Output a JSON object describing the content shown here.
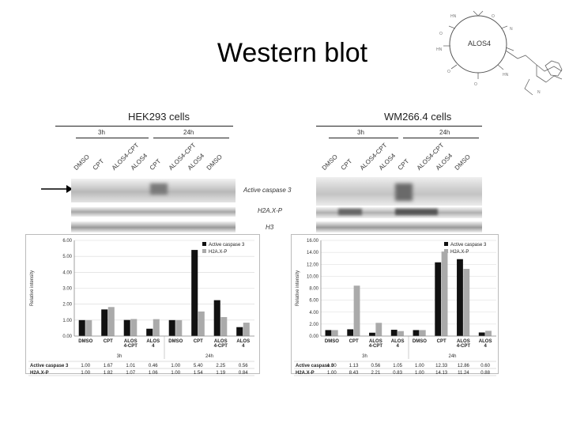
{
  "slide": {
    "title": "Western blot"
  },
  "structure": {
    "label": "ALOS4",
    "icon": "chemical-structure-icon"
  },
  "left_panel": {
    "cells": "HEK293 cells",
    "time_groups": [
      "3h",
      "24h"
    ],
    "lanes": [
      "DMSO",
      "CPT",
      "ALOS4-CPT",
      "ALOS4",
      "CPT",
      "ALOS4-CPT",
      "ALOS4",
      "DMSO"
    ],
    "blot_labels": [
      "Active caspase 3",
      "H2A.X-P",
      "H3"
    ]
  },
  "right_panel": {
    "cells": "WM266.4 cells",
    "time_groups": [
      "3h",
      "24h"
    ],
    "lanes": [
      "DMSO",
      "CPT",
      "ALOS4-CPT",
      "ALOS4",
      "CPT",
      "ALOS4-CPT",
      "ALOS4",
      "DMSO"
    ]
  },
  "colors": {
    "active_caspase": "#111111",
    "h2ax": "#aaaaaa",
    "arrow": "#000000"
  },
  "chart_data": [
    {
      "type": "bar",
      "ylabel": "Relative intensity",
      "ylim": [
        0,
        6
      ],
      "yticks": [
        "0.00",
        "1.00",
        "2.00",
        "3.00",
        "4.00",
        "5.00",
        "6.00"
      ],
      "categories": [
        "DMSO",
        "CPT",
        "ALOS 4-CPT",
        "ALOS 4",
        "DMSO",
        "CPT",
        "ALOS 4-CPT",
        "ALOS 4"
      ],
      "groups": [
        "3h",
        "24h"
      ],
      "series": [
        {
          "name": "Active caspase 3",
          "values": [
            1.0,
            1.67,
            1.01,
            0.46,
            1.0,
            5.4,
            2.25,
            0.56
          ],
          "labels": [
            "1.00",
            "1.67",
            "1.01",
            "0.46",
            "1.00",
            "5.40",
            "2.25",
            "0.56"
          ]
        },
        {
          "name": "H2A.X-P",
          "values": [
            1.0,
            1.82,
            1.07,
            1.06,
            1.0,
            1.54,
            1.19,
            0.84
          ],
          "labels": [
            "1.00",
            "1.82",
            "1.07",
            "1.06",
            "1.00",
            "1.54",
            "1.19",
            "0.84"
          ]
        }
      ],
      "legend": "top-right"
    },
    {
      "type": "bar",
      "ylabel": "Relative intensity",
      "ylim": [
        0,
        16
      ],
      "yticks": [
        "0.00",
        "2.00",
        "4.00",
        "6.00",
        "8.00",
        "10.00",
        "12.00",
        "14.00",
        "16.00"
      ],
      "categories": [
        "DMSO",
        "CPT",
        "ALOS 4-CPT",
        "ALOS 4",
        "DMSO",
        "CPT",
        "ALOS 4-CPT",
        "ALOS 4"
      ],
      "groups": [
        "3h",
        "24h"
      ],
      "series": [
        {
          "name": "Active caspase 3",
          "values": [
            1.0,
            1.13,
            0.56,
            1.05,
            1.0,
            12.33,
            12.86,
            0.6
          ],
          "labels": [
            "1.00",
            "1.13",
            "0.56",
            "1.05",
            "1.00",
            "12.33",
            "12.86",
            "0.60"
          ]
        },
        {
          "name": "H2A.X-P",
          "values": [
            1.0,
            8.43,
            2.21,
            0.83,
            1.0,
            14.13,
            11.24,
            0.88
          ],
          "labels": [
            "1.00",
            "8.43",
            "2.21",
            "0.83",
            "1.00",
            "14.13",
            "11.24",
            "0.88"
          ]
        }
      ],
      "legend": "top-right"
    }
  ]
}
